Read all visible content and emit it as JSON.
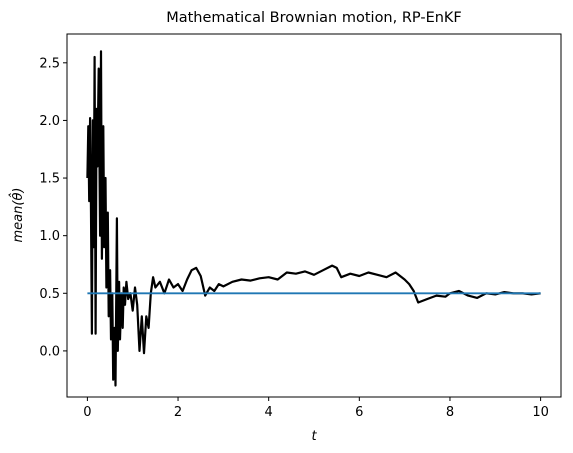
{
  "chart_data": {
    "type": "line",
    "title": "Mathematical Brownian motion, RP-EnKF",
    "xlabel": "t",
    "ylabel": "mean(θ̂)",
    "xlim": [
      -0.45,
      10.45
    ],
    "ylim": [
      -0.4,
      2.75
    ],
    "xticks": [
      0,
      2,
      4,
      6,
      8,
      10
    ],
    "xtick_labels": [
      "0",
      "2",
      "4",
      "6",
      "8",
      "10"
    ],
    "yticks": [
      0.0,
      0.5,
      1.0,
      1.5,
      2.0,
      2.5
    ],
    "ytick_labels": [
      "0.0",
      "0.5",
      "1.0",
      "1.5",
      "2.0",
      "2.5"
    ],
    "grid": false,
    "legend": "none",
    "series": [
      {
        "color": "#000000",
        "x": [
          0.0,
          0.02,
          0.04,
          0.06,
          0.08,
          0.1,
          0.12,
          0.14,
          0.16,
          0.18,
          0.2,
          0.22,
          0.25,
          0.28,
          0.3,
          0.32,
          0.35,
          0.37,
          0.4,
          0.42,
          0.45,
          0.47,
          0.5,
          0.52,
          0.55,
          0.57,
          0.6,
          0.62,
          0.65,
          0.67,
          0.7,
          0.72,
          0.75,
          0.78,
          0.8,
          0.83,
          0.86,
          0.9,
          0.95,
          1.0,
          1.05,
          1.1,
          1.15,
          1.2,
          1.25,
          1.3,
          1.35,
          1.4,
          1.45,
          1.5,
          1.6,
          1.7,
          1.8,
          1.9,
          2.0,
          2.1,
          2.2,
          2.3,
          2.4,
          2.5,
          2.6,
          2.7,
          2.8,
          2.9,
          3.0,
          3.2,
          3.4,
          3.6,
          3.8,
          4.0,
          4.2,
          4.4,
          4.6,
          4.8,
          5.0,
          5.2,
          5.4,
          5.5,
          5.6,
          5.8,
          6.0,
          6.2,
          6.4,
          6.6,
          6.8,
          7.0,
          7.1,
          7.2,
          7.3,
          7.5,
          7.7,
          7.9,
          8.0,
          8.2,
          8.4,
          8.6,
          8.8,
          9.0,
          9.2,
          9.4,
          9.6,
          9.8,
          10.0
        ],
        "y": [
          1.5,
          1.95,
          1.3,
          2.02,
          1.2,
          0.15,
          2.0,
          0.9,
          2.55,
          0.15,
          2.1,
          1.6,
          2.45,
          1.0,
          2.6,
          0.8,
          1.95,
          0.9,
          1.5,
          0.55,
          1.2,
          0.3,
          0.7,
          0.1,
          0.5,
          -0.25,
          0.2,
          -0.3,
          1.15,
          0.0,
          0.6,
          0.1,
          0.5,
          0.2,
          0.55,
          0.4,
          0.6,
          0.45,
          0.5,
          0.35,
          0.55,
          0.4,
          0.0,
          0.3,
          -0.02,
          0.3,
          0.2,
          0.5,
          0.64,
          0.55,
          0.6,
          0.5,
          0.62,
          0.55,
          0.58,
          0.52,
          0.62,
          0.7,
          0.72,
          0.65,
          0.48,
          0.55,
          0.52,
          0.58,
          0.56,
          0.6,
          0.62,
          0.61,
          0.63,
          0.64,
          0.62,
          0.68,
          0.67,
          0.69,
          0.66,
          0.7,
          0.74,
          0.72,
          0.64,
          0.67,
          0.65,
          0.68,
          0.66,
          0.64,
          0.68,
          0.62,
          0.58,
          0.52,
          0.42,
          0.45,
          0.48,
          0.47,
          0.5,
          0.52,
          0.48,
          0.46,
          0.5,
          0.49,
          0.51,
          0.5,
          0.5,
          0.49,
          0.5
        ]
      },
      {
        "color": "#1f77b4",
        "x": [
          0,
          10
        ],
        "y": [
          0.5,
          0.5
        ]
      }
    ]
  }
}
